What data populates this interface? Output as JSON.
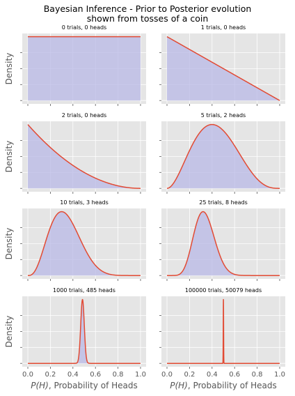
{
  "figure": {
    "title_line1": "Bayesian Inference - Prior to Posterior evolution",
    "title_line2": "shown from tosses of a coin",
    "ylabel": "Density",
    "xlabel_var": "P(H)",
    "xlabel_rest": ", Probability of Heads",
    "xticks": [
      "0.0",
      "0.2",
      "0.4",
      "0.6",
      "0.8",
      "1.0"
    ],
    "colors": {
      "axes_bg": "#e5e5e5",
      "grid": "#ffffff",
      "line": "#e24a33",
      "fill": "#b8b8e6",
      "text": "#555555"
    }
  },
  "chart_data": [
    {
      "type": "area",
      "title": "0 trials, 0 heads",
      "trials": 0,
      "heads": 0,
      "xlim": [
        0,
        1
      ]
    },
    {
      "type": "area",
      "title": "1 trials, 0 heads",
      "trials": 1,
      "heads": 0,
      "xlim": [
        0,
        1
      ]
    },
    {
      "type": "area",
      "title": "2 trials, 0 heads",
      "trials": 2,
      "heads": 0,
      "xlim": [
        0,
        1
      ]
    },
    {
      "type": "area",
      "title": "5 trials, 2 heads",
      "trials": 5,
      "heads": 2,
      "xlim": [
        0,
        1
      ]
    },
    {
      "type": "area",
      "title": "10 trials, 3 heads",
      "trials": 10,
      "heads": 3,
      "xlim": [
        0,
        1
      ]
    },
    {
      "type": "area",
      "title": "25 trials, 8 heads",
      "trials": 25,
      "heads": 8,
      "xlim": [
        0,
        1
      ]
    },
    {
      "type": "area",
      "title": "1000 trials, 485 heads",
      "trials": 1000,
      "heads": 485,
      "xlim": [
        0,
        1
      ]
    },
    {
      "type": "area",
      "title": "100000 trials, 50079 heads",
      "trials": 100000,
      "heads": 50079,
      "xlim": [
        0,
        1
      ]
    }
  ]
}
